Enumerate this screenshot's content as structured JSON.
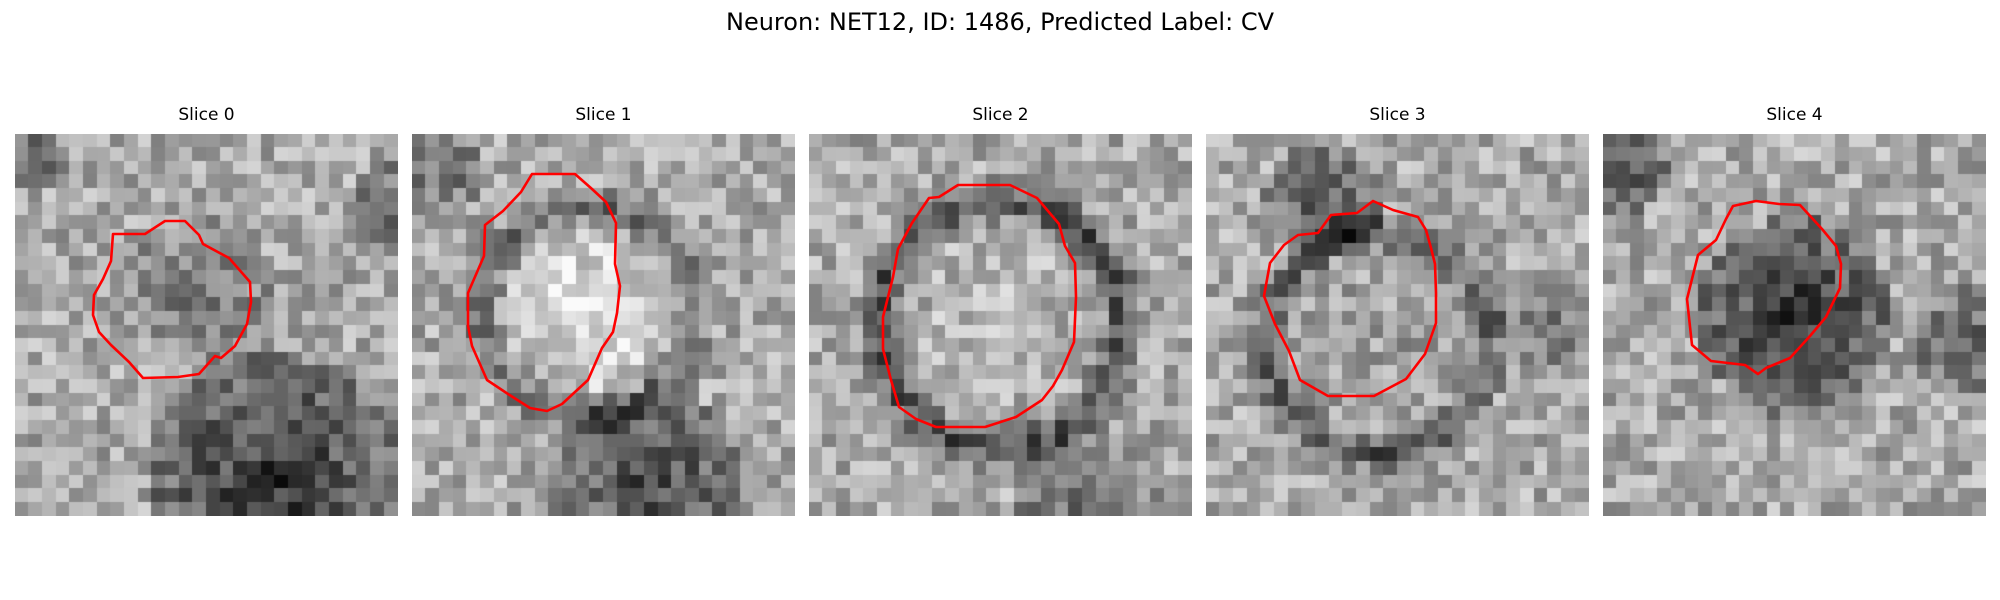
{
  "figure": {
    "title": "Neuron: NET12, ID: 1486, Predicted Label: CV"
  },
  "colors": {
    "outline": "#ff0000",
    "background": "#ffffff",
    "colormap": "gray"
  },
  "slices": [
    {
      "title": "Slice 0"
    },
    {
      "title": "Slice 1"
    },
    {
      "title": "Slice 2"
    },
    {
      "title": "Slice 3"
    },
    {
      "title": "Slice 4"
    }
  ]
}
